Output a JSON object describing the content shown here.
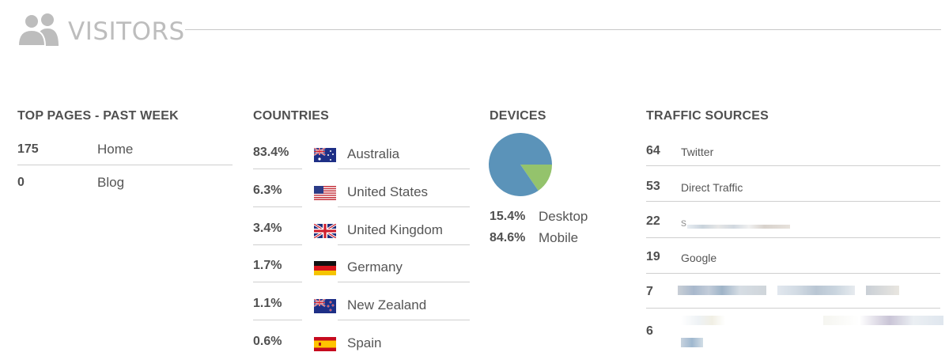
{
  "header": {
    "title": "VISITORS",
    "icon": "users-icon",
    "icon_color": "#bdbdbd"
  },
  "top_pages": {
    "title": "TOP PAGES - PAST WEEK",
    "items": [
      {
        "count": "175",
        "page": "Home"
      },
      {
        "count": "0",
        "page": "Blog"
      }
    ]
  },
  "countries": {
    "title": "COUNTRIES",
    "items": [
      {
        "percent": "83.4%",
        "name": "Australia",
        "flag": "australia-flag-icon"
      },
      {
        "percent": "6.3%",
        "name": "United States",
        "flag": "united-states-flag-icon"
      },
      {
        "percent": "3.4%",
        "name": "United Kingdom",
        "flag": "united-kingdom-flag-icon"
      },
      {
        "percent": "1.7%",
        "name": "Germany",
        "flag": "germany-flag-icon"
      },
      {
        "percent": "1.1%",
        "name": "New Zealand",
        "flag": "new-zealand-flag-icon"
      },
      {
        "percent": "0.6%",
        "name": "Spain",
        "flag": "spain-flag-icon"
      }
    ]
  },
  "devices": {
    "title": "DEVICES",
    "items": [
      {
        "percent": "15.4%",
        "name": "Desktop",
        "share": 15.4,
        "color": "#94c36c"
      },
      {
        "percent": "84.6%",
        "name": "Mobile",
        "share": 84.6,
        "color": "#5b93b9"
      }
    ]
  },
  "traffic_sources": {
    "title": "TRAFFIC SOURCES",
    "items": [
      {
        "count": "64",
        "source": "Twitter"
      },
      {
        "count": "53",
        "source": "Direct Traffic"
      },
      {
        "count": "22",
        "source": "s"
      },
      {
        "count": "19",
        "source": "Google"
      },
      {
        "count": "7",
        "source": ""
      },
      {
        "count": "6",
        "source": ""
      }
    ]
  }
}
